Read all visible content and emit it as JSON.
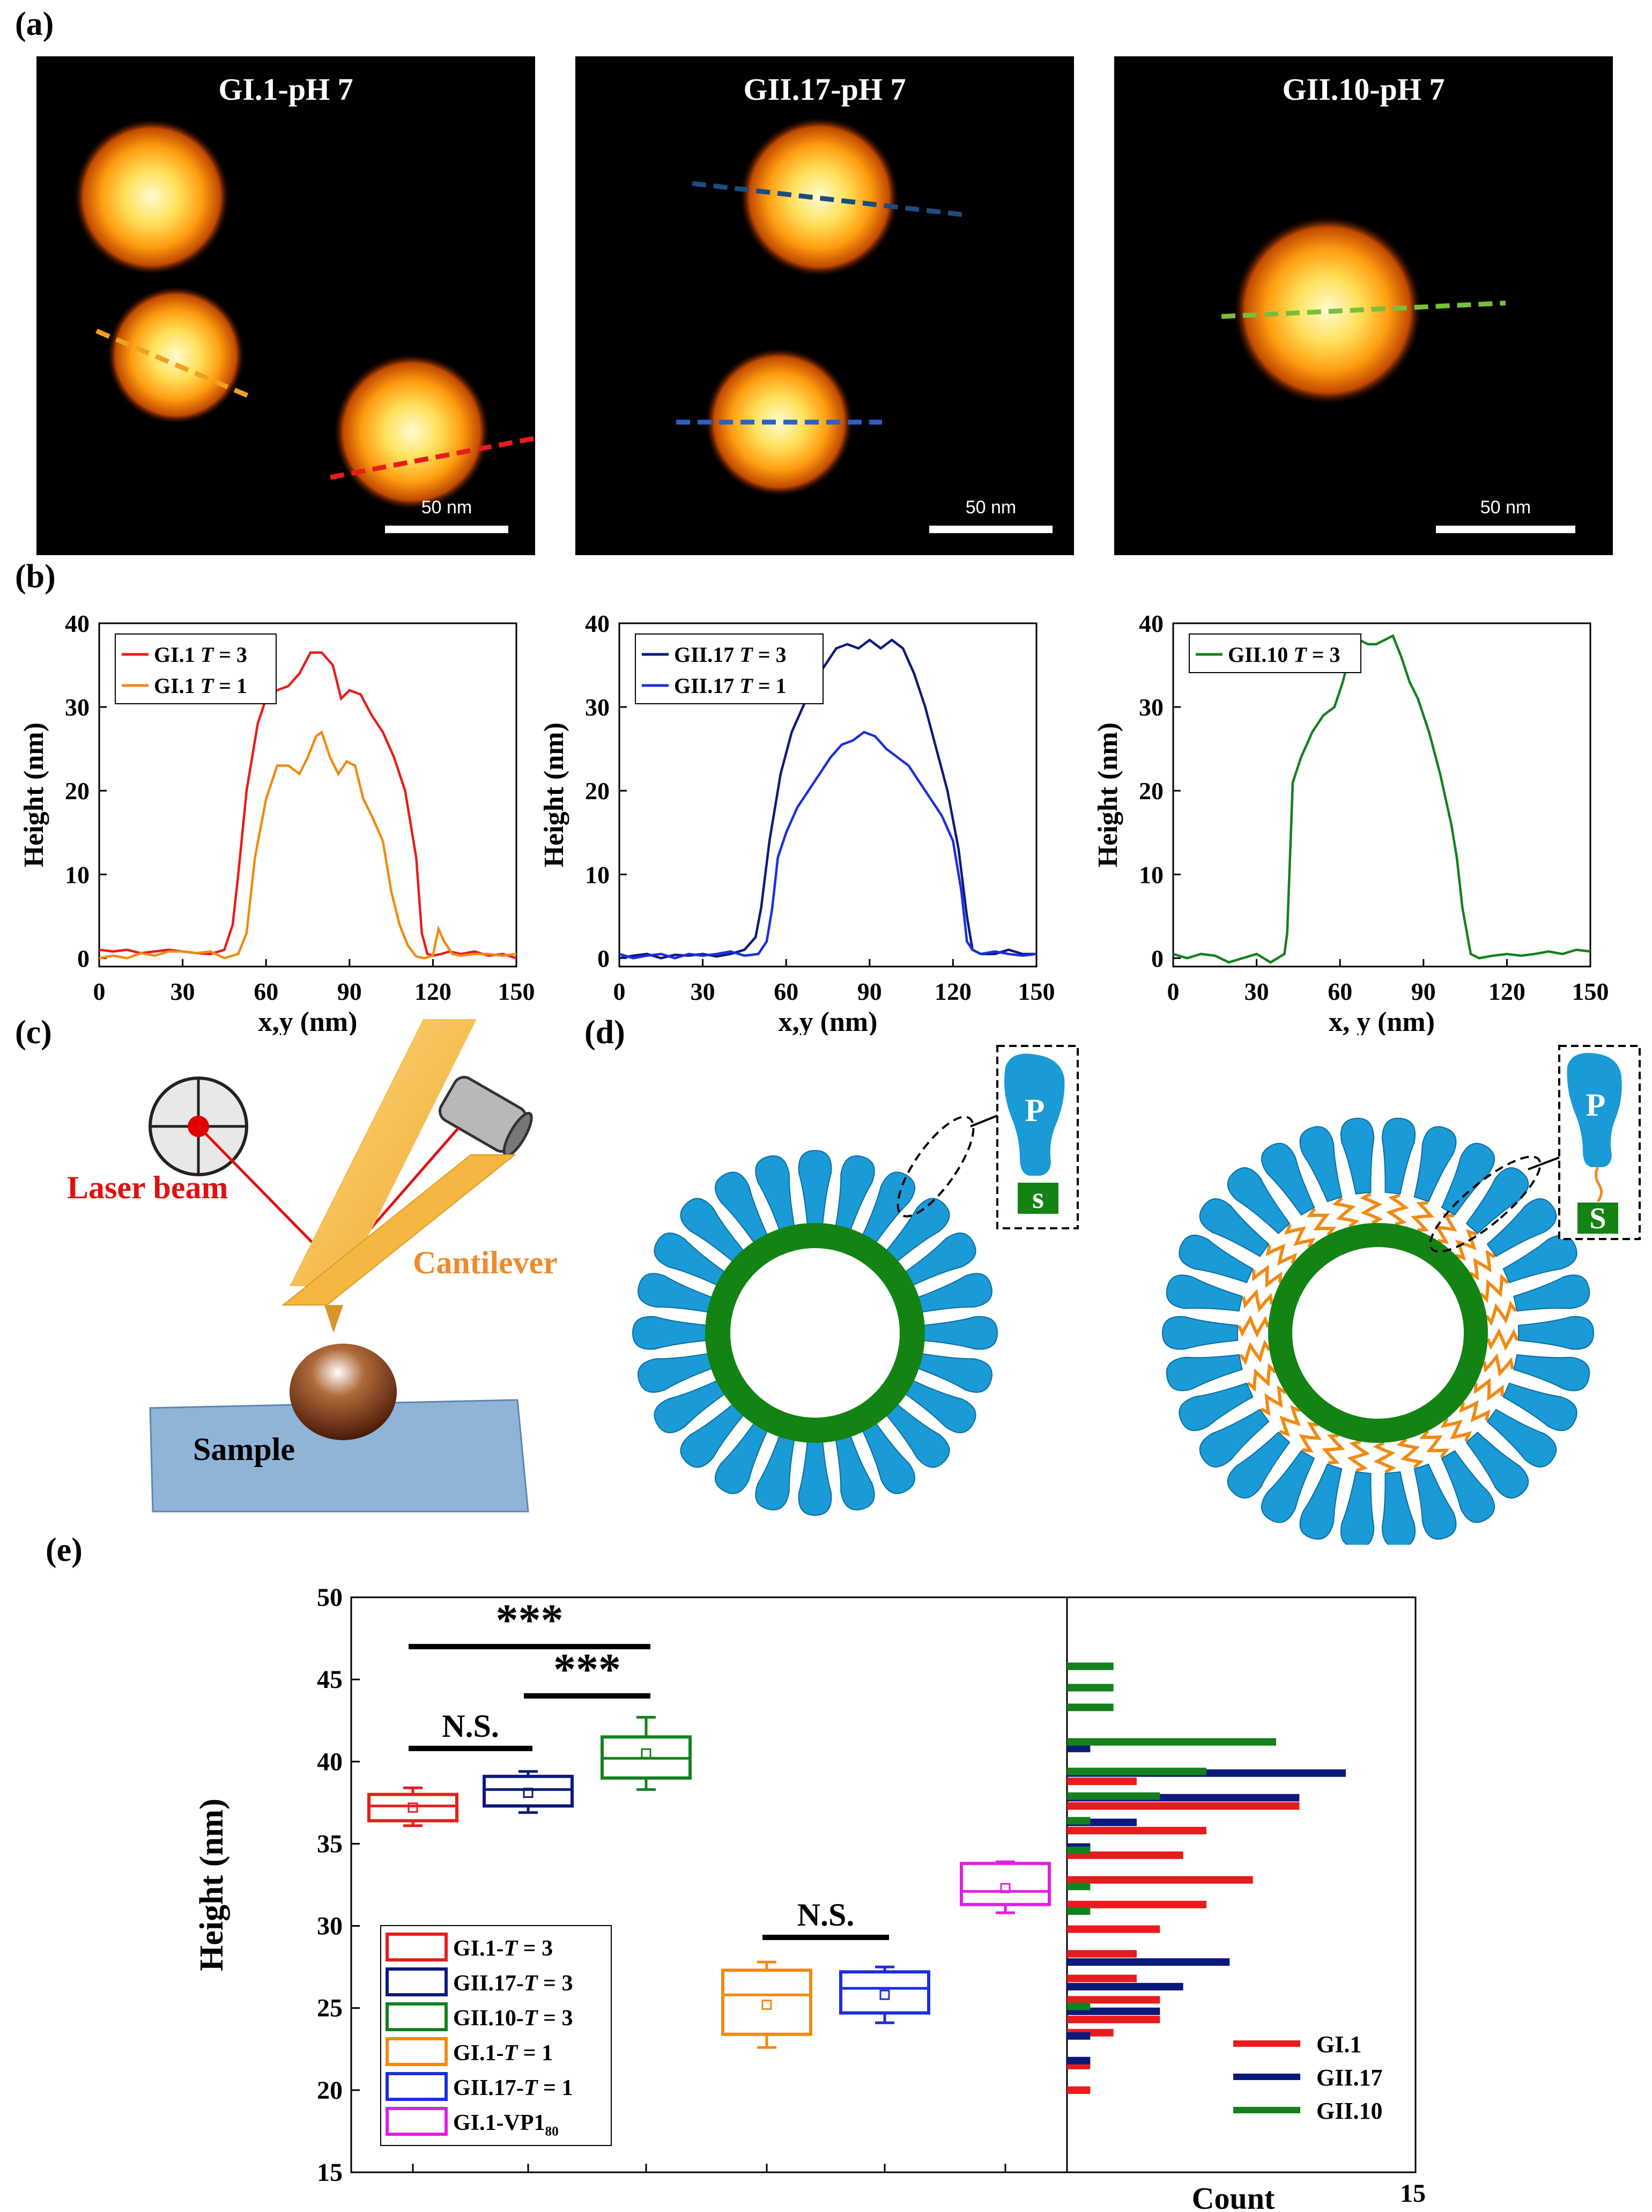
{
  "panel_labels": {
    "a": "(a)",
    "b": "(b)",
    "c": "(c)",
    "d": "(d)",
    "e": "(e)"
  },
  "afm_images": [
    {
      "title": "GI.1-pH 7",
      "scale": "50 nm"
    },
    {
      "title": "GII.17-pH 7",
      "scale": "50 nm"
    },
    {
      "title": "GII.10-pH 7",
      "scale": "50 nm"
    }
  ],
  "colors": {
    "red": "#e81c1c",
    "orange": "#f08a14",
    "navy": "#0b1a7a",
    "blue": "#1c2ee0",
    "green": "#14801e",
    "magenta": "#e21ee2",
    "capsid_blue": "#1a9ad6",
    "capsid_green": "#138313"
  },
  "chart_data": [
    {
      "type": "line",
      "title": "",
      "xlabel": "x,y (nm)",
      "ylabel": "Height (nm)",
      "xlim": [
        0,
        150
      ],
      "ylim": [
        -1,
        40
      ],
      "xticks": [
        0,
        30,
        60,
        90,
        120,
        150
      ],
      "yticks": [
        0,
        10,
        20,
        30,
        40
      ],
      "series": [
        {
          "name": "GI.1 T = 3",
          "label_main": "GI.1 ",
          "label_italic": "T",
          "label_rest": " = 3",
          "color": "#e81c1c",
          "x": [
            0,
            5,
            10,
            15,
            20,
            25,
            30,
            35,
            40,
            45,
            48,
            50,
            53,
            57,
            60,
            64,
            68,
            72,
            76,
            80,
            84,
            87,
            90,
            94,
            98,
            102,
            106,
            110,
            114,
            116,
            118,
            120,
            123,
            126,
            130,
            135,
            140,
            145,
            150
          ],
          "y": [
            1,
            0.8,
            1,
            0.6,
            0.8,
            1,
            0.8,
            0.6,
            0.5,
            1,
            4,
            10,
            20,
            28,
            31,
            32,
            32.5,
            34,
            36.5,
            36.5,
            35,
            31,
            32,
            31.5,
            29,
            27,
            24,
            20,
            12,
            3,
            0.5,
            0.3,
            0.5,
            0.8,
            0.5,
            0.8,
            0.3,
            0.5,
            0
          ]
        },
        {
          "name": "GI.1 T = 1",
          "label_main": "GI.1 ",
          "label_italic": "T",
          "label_rest": " = 1",
          "color": "#f08a14",
          "x": [
            0,
            5,
            10,
            15,
            20,
            25,
            30,
            35,
            40,
            45,
            50,
            53,
            56,
            60,
            64,
            68,
            72,
            75,
            78,
            80,
            83,
            86,
            89,
            92,
            95,
            98,
            102,
            105,
            108,
            111,
            114,
            117,
            120,
            122,
            124,
            127,
            130,
            135,
            140,
            145,
            150
          ],
          "y": [
            0,
            0.3,
            0,
            0.6,
            0.3,
            0.8,
            0.8,
            0.6,
            0.8,
            0,
            0.5,
            3,
            12,
            19,
            23,
            23,
            22,
            24,
            26.5,
            27,
            24,
            22,
            23.5,
            23,
            19,
            17,
            14,
            8,
            4,
            1.5,
            0.2,
            0,
            0.3,
            3.5,
            2,
            0.5,
            0.3,
            0.5,
            0.5,
            0.3,
            0.5
          ]
        }
      ]
    },
    {
      "type": "line",
      "title": "",
      "xlabel": "x,y (nm)",
      "ylabel": "Height (nm)",
      "xlim": [
        0,
        150
      ],
      "ylim": [
        -1,
        40
      ],
      "xticks": [
        0,
        30,
        60,
        90,
        120,
        150
      ],
      "yticks": [
        0,
        10,
        20,
        30,
        40
      ],
      "series": [
        {
          "name": "GII.17 T = 3",
          "label_main": "GII.17 ",
          "label_italic": "T",
          "label_rest": " = 3",
          "color": "#0b1a7a",
          "x": [
            0,
            5,
            10,
            15,
            20,
            25,
            30,
            35,
            40,
            45,
            49,
            51,
            54,
            58,
            62,
            66,
            70,
            74,
            78,
            82,
            86,
            90,
            94,
            98,
            102,
            106,
            110,
            114,
            118,
            122,
            125,
            127,
            130,
            135,
            140,
            145,
            150
          ],
          "y": [
            0,
            0.3,
            0.5,
            0,
            0.4,
            0.3,
            0.5,
            0.2,
            0.5,
            1,
            2.5,
            6,
            14,
            22,
            27,
            30,
            33,
            35,
            37,
            37.5,
            37,
            38,
            37,
            38,
            37,
            34,
            30,
            25,
            20,
            13,
            5,
            1,
            0.5,
            0.5,
            1,
            0.5,
            0.5
          ]
        },
        {
          "name": "GII.17 T = 1",
          "label_main": "GII.17 ",
          "label_italic": "T",
          "label_rest": " = 1",
          "color": "#1c2ee0",
          "x": [
            0,
            5,
            10,
            15,
            20,
            25,
            30,
            35,
            40,
            45,
            50,
            53,
            55,
            57,
            60,
            64,
            68,
            72,
            76,
            80,
            84,
            88,
            92,
            96,
            100,
            104,
            108,
            112,
            116,
            120,
            123,
            125,
            127,
            130,
            135,
            140,
            145,
            150
          ],
          "y": [
            0.5,
            0,
            0.3,
            0.5,
            0,
            0.5,
            0.3,
            0.5,
            0.8,
            0.3,
            0.5,
            2,
            6,
            12,
            15,
            18,
            20,
            22,
            24,
            25.5,
            26,
            27,
            26.5,
            25,
            24,
            23,
            21,
            19,
            17,
            14,
            8,
            2,
            1,
            0.5,
            0.8,
            0.5,
            0.3,
            0.5
          ]
        }
      ]
    },
    {
      "type": "line",
      "title": "",
      "xlabel": "x, y (nm)",
      "ylabel": "Height (nm)",
      "xlim": [
        0,
        150
      ],
      "ylim": [
        -1,
        40
      ],
      "xticks": [
        0,
        30,
        60,
        90,
        120,
        150
      ],
      "yticks": [
        0,
        10,
        20,
        30,
        40
      ],
      "series": [
        {
          "name": "GII.10 T = 3",
          "label_main": "GII.10 ",
          "label_italic": "T",
          "label_rest": " = 3",
          "color": "#14801e",
          "x": [
            0,
            5,
            10,
            15,
            20,
            25,
            30,
            35,
            40,
            41,
            43,
            46,
            50,
            54,
            58,
            61,
            64,
            67,
            70,
            73,
            76,
            79,
            82,
            85,
            88,
            92,
            96,
            100,
            102,
            104,
            107,
            110,
            115,
            120,
            125,
            130,
            135,
            140,
            145,
            150
          ],
          "y": [
            0.5,
            0,
            0.5,
            0.3,
            -0.5,
            0,
            0.5,
            -0.5,
            0.5,
            3,
            21,
            24,
            27,
            29,
            30,
            33,
            37,
            38,
            37.5,
            37.5,
            38,
            38.5,
            36,
            33,
            31,
            27,
            22,
            16,
            12,
            6,
            0.5,
            0,
            0.3,
            0.5,
            0.3,
            0.5,
            0.8,
            0.5,
            1,
            0.8
          ]
        }
      ]
    },
    {
      "type": "box",
      "title": "",
      "xlabel": "",
      "ylabel": "Height (nm)",
      "ylim": [
        15,
        50
      ],
      "yticks": [
        15,
        20,
        25,
        30,
        35,
        40,
        45,
        50
      ],
      "groups": [
        {
          "name": "GI.1-T = 3",
          "leg_main": "GI.1-",
          "leg_italic": "T",
          "leg_rest": " = 3",
          "leg_sub": "",
          "color": "#e81c1c",
          "pos": 1,
          "min": 36.1,
          "q1": 36.4,
          "median": 37.3,
          "q3": 38.0,
          "max": 38.4,
          "mean": 37.2
        },
        {
          "name": "GII.17-T = 3",
          "leg_main": "GII.17-",
          "leg_italic": "T",
          "leg_rest": " = 3",
          "leg_sub": "",
          "color": "#0b1a7a",
          "pos": 2,
          "min": 36.9,
          "q1": 37.3,
          "median": 38.3,
          "q3": 39.1,
          "max": 39.4,
          "mean": 38.1
        },
        {
          "name": "GII.10-T = 3",
          "leg_main": "GII.10-",
          "leg_italic": "T",
          "leg_rest": " = 3",
          "leg_sub": "",
          "color": "#14801e",
          "pos": 3,
          "min": 38.3,
          "q1": 39.0,
          "median": 40.2,
          "q3": 41.5,
          "max": 42.7,
          "mean": 40.5
        },
        {
          "name": "GI.1-T = 1",
          "leg_main": "GI.1-",
          "leg_italic": "T",
          "leg_rest": " = 1",
          "leg_sub": "",
          "color": "#f08a14",
          "pos": 4,
          "min": 22.6,
          "q1": 23.4,
          "median": 25.8,
          "q3": 27.3,
          "max": 27.8,
          "mean": 25.2
        },
        {
          "name": "GII.17-T = 1",
          "leg_main": "GII.17-",
          "leg_italic": "T",
          "leg_rest": " = 1",
          "leg_sub": "",
          "color": "#1c2ee0",
          "pos": 5,
          "min": 24.1,
          "q1": 24.7,
          "median": 26.2,
          "q3": 27.2,
          "max": 27.5,
          "mean": 25.8
        },
        {
          "name": "GI.1-VP1 80",
          "leg_main": "GI.1-VP1",
          "leg_italic": "",
          "leg_rest": "",
          "leg_sub": "80",
          "color": "#e21ee2",
          "pos": 6,
          "min": 30.8,
          "q1": 31.3,
          "median": 32.1,
          "q3": 33.8,
          "max": 33.9,
          "mean": 32.3
        }
      ],
      "significance": [
        {
          "label": "***",
          "from": 1,
          "to": 3,
          "y": 47.0
        },
        {
          "label": "***",
          "from": 2,
          "to": 3,
          "y": 44.0
        },
        {
          "label": "N.S.",
          "from": 1,
          "to": 2,
          "y": 40.8
        },
        {
          "label": "N.S.",
          "from": 4,
          "to": 5,
          "y": 29.3
        }
      ]
    },
    {
      "type": "bar",
      "orientation": "horizontal",
      "title": "",
      "xlabel": "Count",
      "xmax_label": "15",
      "xlim": [
        0,
        15
      ],
      "ylim": [
        15,
        50
      ],
      "series": [
        {
          "name": "GI.1",
          "color": "#e81c1c",
          "bars": [
            {
              "y": 20.0,
              "v": 1
            },
            {
              "y": 21.5,
              "v": 1
            },
            {
              "y": 23.5,
              "v": 2
            },
            {
              "y": 24.3,
              "v": 4
            },
            {
              "y": 25.5,
              "v": 4
            },
            {
              "y": 26.8,
              "v": 3
            },
            {
              "y": 28.3,
              "v": 3
            },
            {
              "y": 29.8,
              "v": 4
            },
            {
              "y": 31.3,
              "v": 6
            },
            {
              "y": 32.8,
              "v": 8
            },
            {
              "y": 34.3,
              "v": 5
            },
            {
              "y": 35.8,
              "v": 6
            },
            {
              "y": 37.3,
              "v": 10
            },
            {
              "y": 38.8,
              "v": 3
            }
          ]
        },
        {
          "name": "GII.17",
          "color": "#0b1a7a",
          "bars": [
            {
              "y": 21.8,
              "v": 1
            },
            {
              "y": 23.3,
              "v": 1
            },
            {
              "y": 24.8,
              "v": 4
            },
            {
              "y": 26.3,
              "v": 5
            },
            {
              "y": 27.8,
              "v": 7
            },
            {
              "y": 34.8,
              "v": 1
            },
            {
              "y": 36.3,
              "v": 3
            },
            {
              "y": 37.8,
              "v": 10
            },
            {
              "y": 39.3,
              "v": 12
            },
            {
              "y": 40.8,
              "v": 1
            }
          ]
        },
        {
          "name": "GII.10",
          "color": "#14801e",
          "bars": [
            {
              "y": 25.1,
              "v": 1
            },
            {
              "y": 30.9,
              "v": 1
            },
            {
              "y": 32.4,
              "v": 1
            },
            {
              "y": 34.6,
              "v": 1
            },
            {
              "y": 36.4,
              "v": 1
            },
            {
              "y": 37.9,
              "v": 4
            },
            {
              "y": 39.4,
              "v": 6
            },
            {
              "y": 41.2,
              "v": 9
            },
            {
              "y": 43.3,
              "v": 2
            },
            {
              "y": 44.5,
              "v": 2
            },
            {
              "y": 45.8,
              "v": 2
            }
          ]
        }
      ]
    }
  ],
  "afm_setup": {
    "laser": "Laser beam",
    "cantilever": "Cantilever",
    "sample": "Sample"
  },
  "capsid": {
    "p_label": "P",
    "s_label": "S",
    "s_label_small": "s"
  }
}
